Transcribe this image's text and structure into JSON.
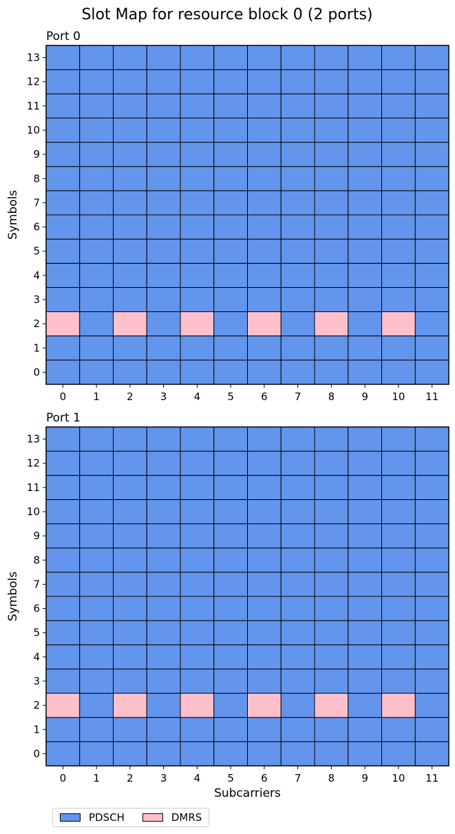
{
  "chart_data": {
    "type": "heatmap",
    "title": "Slot Map for resource block 0 (2 ports)",
    "xlabel": "Subcarriers",
    "ylabel": "Symbols",
    "x_ticks": [
      "0",
      "1",
      "2",
      "3",
      "4",
      "5",
      "6",
      "7",
      "8",
      "9",
      "10",
      "11"
    ],
    "y_ticks": [
      "0",
      "1",
      "2",
      "3",
      "4",
      "5",
      "6",
      "7",
      "8",
      "9",
      "10",
      "11",
      "12",
      "13"
    ],
    "legend": [
      {
        "label": "PDSCH",
        "color": "#6495ED"
      },
      {
        "label": "DMRS",
        "color": "#FFC0CB"
      }
    ],
    "legend_placement": "bottom-left",
    "panels": [
      {
        "title": "Port 0",
        "grid_default": "PDSCH",
        "dmrs_cells": [
          {
            "subcarrier": 0,
            "symbol": 2
          },
          {
            "subcarrier": 2,
            "symbol": 2
          },
          {
            "subcarrier": 4,
            "symbol": 2
          },
          {
            "subcarrier": 6,
            "symbol": 2
          },
          {
            "subcarrier": 8,
            "symbol": 2
          },
          {
            "subcarrier": 10,
            "symbol": 2
          }
        ]
      },
      {
        "title": "Port 1",
        "grid_default": "PDSCH",
        "dmrs_cells": [
          {
            "subcarrier": 0,
            "symbol": 2
          },
          {
            "subcarrier": 2,
            "symbol": 2
          },
          {
            "subcarrier": 4,
            "symbol": 2
          },
          {
            "subcarrier": 6,
            "symbol": 2
          },
          {
            "subcarrier": 8,
            "symbol": 2
          },
          {
            "subcarrier": 10,
            "symbol": 2
          }
        ]
      }
    ]
  }
}
